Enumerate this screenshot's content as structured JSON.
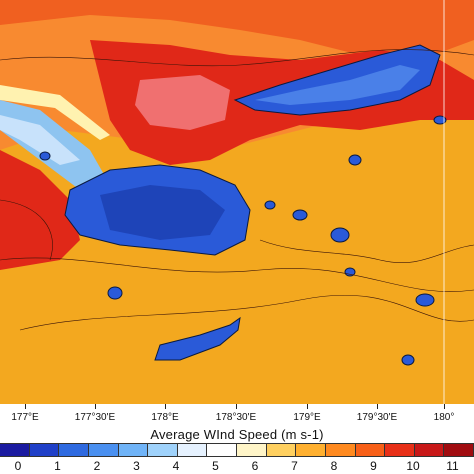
{
  "colorbar": {
    "title": "Average WInd Speed  (m s-1)",
    "colors": [
      "#1a1aa0",
      "#2040c8",
      "#2f6ae0",
      "#4a90f0",
      "#70b4f8",
      "#9fd2fb",
      "#e6f2ff",
      "#ffffff",
      "#fff5c8",
      "#ffd060",
      "#ffb030",
      "#ff8a20",
      "#f86018",
      "#e83018",
      "#c81818",
      "#a00c10"
    ],
    "labels": [
      "0",
      "1",
      "2",
      "3",
      "4",
      "5",
      "6",
      "7",
      "8",
      "9",
      "10",
      "11"
    ]
  },
  "x_axis": {
    "ticks": [
      "177°E",
      "177°30'E",
      "178°E",
      "178°30'E",
      "179°E",
      "179°30'E",
      "180°"
    ]
  },
  "map": {
    "colors": {
      "background": "#f0a020",
      "mid_orange": "#f88a30",
      "red": "#e02818",
      "deep_red": "#f05050",
      "pink": "#f08080",
      "land_blue": "#2a5ad8",
      "light_blue": "#8ec4f0"
    }
  }
}
